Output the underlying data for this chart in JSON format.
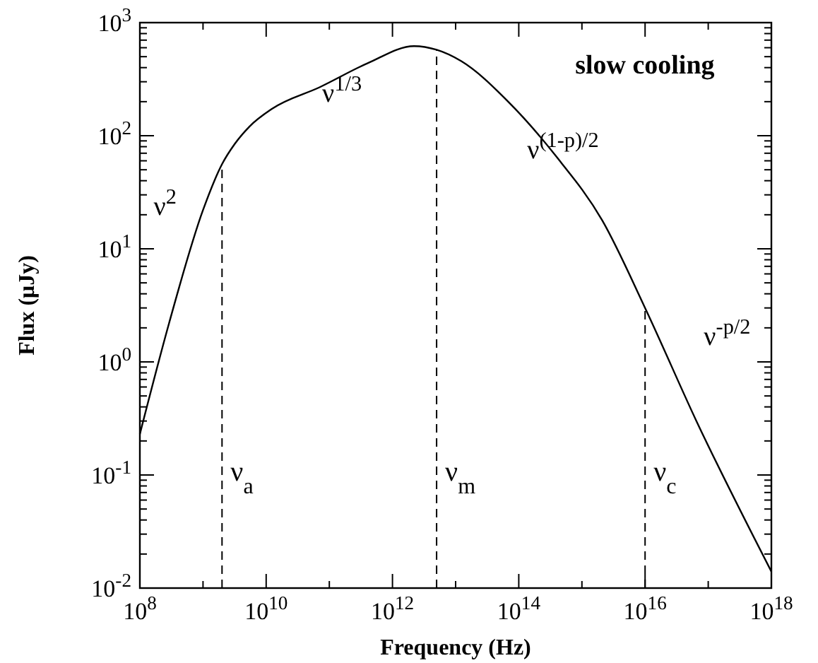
{
  "chart_data": {
    "type": "line",
    "xlabel": "Frequency (Hz)",
    "ylabel": "Flux (μJy)",
    "log": "xy",
    "grid": false,
    "marker": "none",
    "line_style": "solid",
    "xlim": [
      100000000.0,
      1e+18
    ],
    "ylim": [
      0.01,
      1000
    ],
    "xticks": [
      {
        "value": 100000000.0,
        "label": "10$^{8}$"
      },
      {
        "value": 1000000000.0,
        "label": null
      },
      {
        "value": 10000000000.0,
        "label": "10$^{10}$"
      },
      {
        "value": 100000000000.0,
        "label": null
      },
      {
        "value": 1000000000000.0,
        "label": "10$^{12}$"
      },
      {
        "value": 10000000000000.0,
        "label": null
      },
      {
        "value": 100000000000000.0,
        "label": "10$^{14}$"
      },
      {
        "value": 1000000000000000.0,
        "label": null
      },
      {
        "value": 1e+16,
        "label": "10$^{16}$"
      },
      {
        "value": 1e+17,
        "label": null
      },
      {
        "value": 1e+18,
        "label": "10$^{18}$"
      }
    ],
    "yticks": [
      {
        "value": 0.01,
        "label": "10$^{-2}$"
      },
      {
        "value": 0.02,
        "label": null
      },
      {
        "value": 0.03,
        "label": null
      },
      {
        "value": 0.04,
        "label": null
      },
      {
        "value": 0.05,
        "label": null
      },
      {
        "value": 0.06,
        "label": null
      },
      {
        "value": 0.07,
        "label": null
      },
      {
        "value": 0.08,
        "label": null
      },
      {
        "value": 0.09,
        "label": null
      },
      {
        "value": 0.1,
        "label": "10$^{-1}$"
      },
      {
        "value": 0.2,
        "label": null
      },
      {
        "value": 0.3,
        "label": null
      },
      {
        "value": 0.4,
        "label": null
      },
      {
        "value": 0.5,
        "label": null
      },
      {
        "value": 0.6,
        "label": null
      },
      {
        "value": 0.7,
        "label": null
      },
      {
        "value": 0.8,
        "label": null
      },
      {
        "value": 0.9,
        "label": null
      },
      {
        "value": 1,
        "label": "10$^{0}$"
      },
      {
        "value": 2,
        "label": null
      },
      {
        "value": 3,
        "label": null
      },
      {
        "value": 4,
        "label": null
      },
      {
        "value": 5,
        "label": null
      },
      {
        "value": 6,
        "label": null
      },
      {
        "value": 7,
        "label": null
      },
      {
        "value": 8,
        "label": null
      },
      {
        "value": 9,
        "label": null
      },
      {
        "value": 10,
        "label": "10$^{1}$"
      },
      {
        "value": 20,
        "label": null
      },
      {
        "value": 30,
        "label": null
      },
      {
        "value": 40,
        "label": null
      },
      {
        "value": 50,
        "label": null
      },
      {
        "value": 60,
        "label": null
      },
      {
        "value": 70,
        "label": null
      },
      {
        "value": 80,
        "label": null
      },
      {
        "value": 90,
        "label": null
      },
      {
        "value": 100,
        "label": "10$^{2}$"
      },
      {
        "value": 200,
        "label": null
      },
      {
        "value": 300,
        "label": null
      },
      {
        "value": 400,
        "label": null
      },
      {
        "value": 500,
        "label": null
      },
      {
        "value": 600,
        "label": null
      },
      {
        "value": 700,
        "label": null
      },
      {
        "value": 800,
        "label": null
      },
      {
        "value": 900,
        "label": null
      },
      {
        "value": 1000,
        "label": "10$^{3}$"
      }
    ],
    "series": [
      {
        "color": "#000000",
        "x": [
          100000000.0,
          290000000.0,
          1000000000.0,
          2000000000.0,
          3200000000.0,
          5400000000.0,
          12600000000.0,
          71000000000.0,
          400000000000.0,
          2200000000000.0,
          5000000000000.0,
          12300000000000.0,
          68000000000000.0,
          380000000000000.0,
          2100000000000000.0,
          1e+16,
          6.5e+16,
          1e+18
        ],
        "values": [
          0.23,
          2.2,
          22,
          56,
          85,
          120,
          174,
          269,
          436,
          620,
          575,
          456,
          200,
          67,
          17.8,
          3,
          0.3,
          0.014
        ]
      }
    ],
    "ref_lines": [
      {
        "axis": "x",
        "value": 2000000000.0,
        "label": "ν$_{a}$",
        "line_style": "dashed",
        "color": "#000000"
      },
      {
        "axis": "x",
        "value": 5000000000000.0,
        "label": "ν$_{m}$",
        "line_style": "dashed",
        "color": "#000000"
      },
      {
        "axis": "x",
        "value": 1e+16,
        "label": "ν$_{c}$",
        "line_style": "dashed",
        "color": "#000000"
      }
    ],
    "annotations": [
      "slow cooling",
      "ν$^{2}$",
      "ν$^{1/3}$",
      "ν$^{(1-p)/2}$",
      "ν$^{-p/2}$"
    ]
  }
}
